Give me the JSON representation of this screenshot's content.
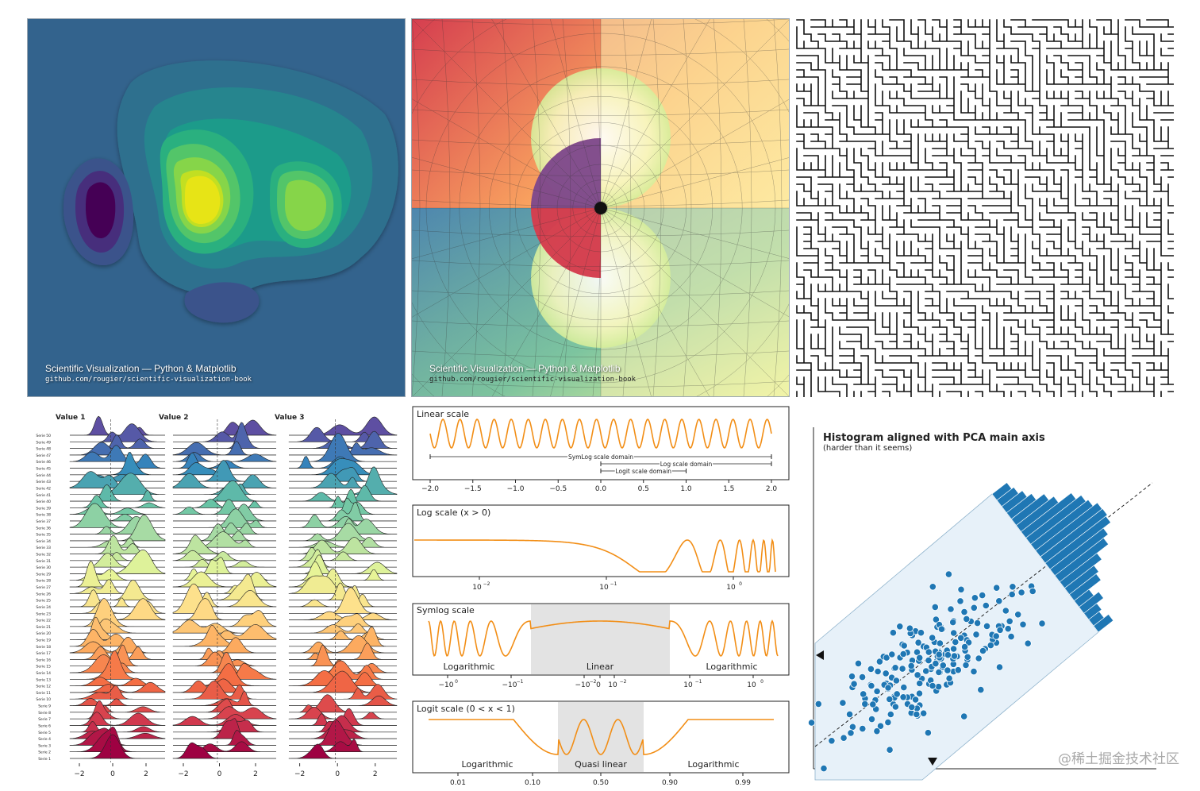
{
  "credit": {
    "title": "Scientific Visualization — Python & Matplotlib",
    "url": "github.com/rougier/scientific-visualization-book"
  },
  "watermark": "@稀土掘金技术社区",
  "colors": {
    "orange": "#f28e16",
    "blue": "#1f77b4",
    "band": "#e3e3e3",
    "pca_fill": "#e7f1f9"
  },
  "chart_data": [
    {
      "type": "heatmap",
      "kind": "filled-contour",
      "colormap": "viridis",
      "title": "",
      "levels": 11
    },
    {
      "type": "heatmap",
      "kind": "domain-coloring",
      "title": "",
      "colormap": "spectral"
    },
    {
      "type": "heatmap",
      "kind": "maze",
      "title": ""
    },
    {
      "type": "area",
      "kind": "ridgeline",
      "panel_titles": [
        "Value 1",
        "Value 2",
        "Value 3"
      ],
      "series": [
        "Serie 50",
        "Serie 49",
        "Serie 48",
        "Serie 47",
        "Serie 46",
        "Serie 45",
        "Serie 44",
        "Serie 43",
        "Serie 42",
        "Serie 41",
        "Serie 40",
        "Serie 39",
        "Serie 38",
        "Serie 37",
        "Serie 36",
        "Serie 35",
        "Serie 34",
        "Serie 33",
        "Serie 32",
        "Serie 31",
        "Serie 30",
        "Serie 29",
        "Serie 28",
        "Serie 27",
        "Serie 26",
        "Serie 25",
        "Serie 24",
        "Serie 23",
        "Serie 22",
        "Serie 21",
        "Serie 20",
        "Serie 19",
        "Serie 18",
        "Serie 17",
        "Serie 16",
        "Serie 15",
        "Serie 14",
        "Serie 13",
        "Serie 12",
        "Serie 11",
        "Serie 10",
        "Serie 9",
        "Serie 8",
        "Serie 7",
        "Serie 6",
        "Serie 5",
        "Serie 4",
        "Serie 3",
        "Serie 2",
        "Serie 1"
      ],
      "xticks": [
        "−2",
        "0",
        "2"
      ],
      "xlim": [
        -2.5,
        2.5
      ]
    },
    {
      "type": "line",
      "title": "Linear scale",
      "xticks": [
        "−2.0",
        "−1.5",
        "−1.0",
        "−0.5",
        "0.0",
        "0.5",
        "1.0",
        "1.5",
        "2.0"
      ],
      "xlim": [
        -2.0,
        2.0
      ],
      "annotations": [
        {
          "label": "SymLog scale domain",
          "from": -2.0,
          "to": 2.0
        },
        {
          "label": "Log scale domain",
          "from": 0.0,
          "to": 2.0
        },
        {
          "label": "Logit scale domain",
          "from": 0.0,
          "to": 1.0
        }
      ]
    },
    {
      "type": "line",
      "title": "Log scale (x > 0)",
      "xticks": [
        "10",
        "10",
        "10"
      ],
      "xtick_exponents": [
        "−2",
        "−1",
        "0"
      ]
    },
    {
      "type": "line",
      "title": "Symlog scale",
      "regions": [
        "Logarithmic",
        "Linear",
        "Logarithmic"
      ],
      "xticks": [
        "−10",
        "−10",
        "−10",
        "0",
        "10",
        "10",
        "10"
      ],
      "xtick_exponents": [
        "0",
        "−1",
        "−2",
        "",
        "−2",
        "−1",
        "0"
      ]
    },
    {
      "type": "line",
      "title": "Logit scale (0 < x < 1)",
      "regions": [
        "Logarithmic",
        "Quasi linear",
        "Logarithmic"
      ],
      "xticks": [
        "0.01",
        "0.10",
        "0.50",
        "0.90",
        "0.99"
      ]
    },
    {
      "type": "scatter",
      "title": "Histogram aligned with PCA main axis",
      "subtitle": "(harder than it seems)",
      "points": 200
    }
  ]
}
